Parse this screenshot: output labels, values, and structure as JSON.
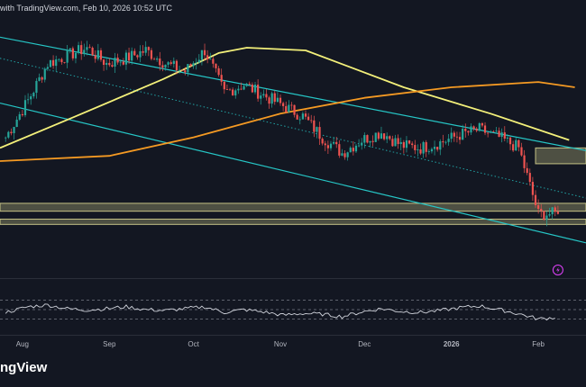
{
  "header": {
    "text": "with TradingView.com, Feb 10, 2026 10:52 UTC"
  },
  "footer": {
    "brand": "ngView"
  },
  "colors": {
    "background": "#131722",
    "up_candle": "#26a69a",
    "down_candle": "#ef5350",
    "channel_lines": "#26c6c6",
    "ma_short": "#f3f07a",
    "ma_long": "#f59a23",
    "support_zone": "#e8e59a",
    "rsi_line": "#d1d4dc",
    "event_marker": "#e040fb"
  },
  "icons": {
    "event_marker": "lightning-icon"
  },
  "chart_data": {
    "type": "candlestick",
    "title": "",
    "x_tick_labels": [
      "Aug",
      "Sep",
      "Oct",
      "Nov",
      "Dec",
      "2026",
      "Feb"
    ],
    "x_range": [
      "2025-07-24",
      "2026-02-18"
    ],
    "y_axis": {
      "visible_tick_labels": false
    },
    "candles_close_approx": [
      {
        "date": "2025-07-26",
        "close": 0.52
      },
      {
        "date": "2025-08-03",
        "close": 0.66
      },
      {
        "date": "2025-08-10",
        "close": 0.8
      },
      {
        "date": "2025-08-17",
        "close": 0.83
      },
      {
        "date": "2025-08-24",
        "close": 0.86
      },
      {
        "date": "2025-08-31",
        "close": 0.8
      },
      {
        "date": "2025-09-07",
        "close": 0.82
      },
      {
        "date": "2025-09-14",
        "close": 0.85
      },
      {
        "date": "2025-09-21",
        "close": 0.8
      },
      {
        "date": "2025-09-28",
        "close": 0.77
      },
      {
        "date": "2025-10-05",
        "close": 0.85
      },
      {
        "date": "2025-10-12",
        "close": 0.69
      },
      {
        "date": "2025-10-19",
        "close": 0.72
      },
      {
        "date": "2025-10-26",
        "close": 0.68
      },
      {
        "date": "2025-11-02",
        "close": 0.64
      },
      {
        "date": "2025-11-09",
        "close": 0.6
      },
      {
        "date": "2025-11-16",
        "close": 0.52
      },
      {
        "date": "2025-11-23",
        "close": 0.46
      },
      {
        "date": "2025-11-30",
        "close": 0.51
      },
      {
        "date": "2025-12-07",
        "close": 0.54
      },
      {
        "date": "2025-12-14",
        "close": 0.49
      },
      {
        "date": "2025-12-21",
        "close": 0.48
      },
      {
        "date": "2025-12-28",
        "close": 0.5
      },
      {
        "date": "2026-01-04",
        "close": 0.53
      },
      {
        "date": "2026-01-11",
        "close": 0.55
      },
      {
        "date": "2026-01-18",
        "close": 0.52
      },
      {
        "date": "2026-01-25",
        "close": 0.48
      },
      {
        "date": "2026-02-01",
        "close": 0.23
      },
      {
        "date": "2026-02-08",
        "close": 0.23
      }
    ],
    "channel_lines": [
      {
        "from": {
          "date": "2025-07-24",
          "price": 0.9
        },
        "to": {
          "date": "2026-02-18",
          "price": 0.47
        }
      },
      {
        "from": {
          "date": "2025-07-24",
          "price": 0.65
        },
        "to": {
          "date": "2026-02-18",
          "price": 0.12
        }
      },
      {
        "from": {
          "date": "2025-07-24",
          "price": 0.82
        },
        "to": {
          "date": "2026-02-18",
          "price": 0.29
        },
        "style": "dotted"
      }
    ],
    "moving_averages": [
      {
        "color": "#f3f07a",
        "points": [
          [
            "2025-07-24",
            0.48
          ],
          [
            "2025-08-20",
            0.6
          ],
          [
            "2025-09-20",
            0.74
          ],
          [
            "2025-10-10",
            0.84
          ],
          [
            "2025-10-20",
            0.86
          ],
          [
            "2025-11-10",
            0.85
          ],
          [
            "2025-12-15",
            0.71
          ],
          [
            "2026-01-15",
            0.61
          ],
          [
            "2026-02-12",
            0.51
          ]
        ]
      },
      {
        "color": "#f59a23",
        "points": [
          [
            "2025-07-24",
            0.43
          ],
          [
            "2025-09-01",
            0.45
          ],
          [
            "2025-10-01",
            0.52
          ],
          [
            "2025-11-01",
            0.61
          ],
          [
            "2025-12-01",
            0.67
          ],
          [
            "2026-01-01",
            0.71
          ],
          [
            "2026-02-01",
            0.73
          ],
          [
            "2026-02-14",
            0.71
          ]
        ]
      }
    ],
    "support_zones": [
      {
        "from": 0.48,
        "to": 0.42,
        "start": "2026-01-31"
      },
      {
        "from": 0.27,
        "to": 0.24,
        "start": "2025-07-24"
      },
      {
        "from": 0.21,
        "to": 0.19,
        "start": "2025-07-24"
      }
    ],
    "rsi": {
      "levels": [
        70,
        50,
        30
      ],
      "values": [
        44,
        56,
        60,
        52,
        49,
        52,
        56,
        50,
        48,
        52,
        56,
        44,
        50,
        45,
        38,
        42,
        40,
        35,
        45,
        52,
        46,
        44,
        48,
        54,
        58,
        50,
        41,
        30,
        34
      ]
    }
  }
}
